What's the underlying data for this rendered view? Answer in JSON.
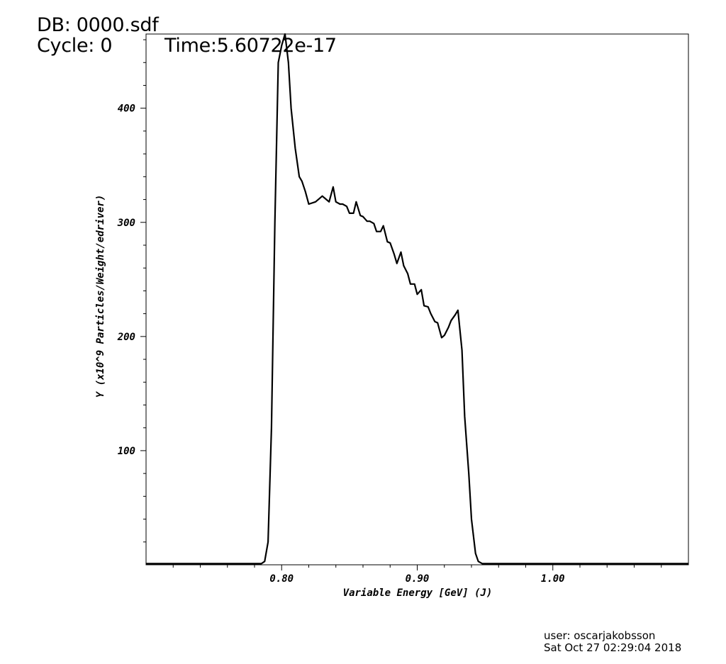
{
  "header": {
    "db": "DB: 0000.sdf",
    "cycle": "Cycle: 0",
    "time": "Time:5.60722e-17"
  },
  "footer": {
    "user": "user: oscarjakobsson",
    "date": "Sat Oct 27 02:29:04 2018"
  },
  "chart_data": {
    "type": "line",
    "title": "",
    "xlabel": "Variable Energy [GeV] (J)",
    "ylabel": "Y (x10^9 Particles/Weight/edriver)",
    "xlim": [
      0.7,
      1.1
    ],
    "ylim": [
      0,
      465
    ],
    "x_ticks": [
      {
        "value": 0.8,
        "label": "0.80"
      },
      {
        "value": 0.9,
        "label": "0.90"
      },
      {
        "value": 1.0,
        "label": "1.00"
      }
    ],
    "y_ticks": [
      {
        "value": 100,
        "label": "100"
      },
      {
        "value": 200,
        "label": "200"
      },
      {
        "value": 300,
        "label": "300"
      },
      {
        "value": 400,
        "label": "400"
      }
    ],
    "grid": false,
    "line_color": "#000000",
    "x": [
      0.7,
      0.785,
      0.7875,
      0.79,
      0.7925,
      0.795,
      0.7975,
      0.8,
      0.8025,
      0.805,
      0.807,
      0.81,
      0.813,
      0.815,
      0.8175,
      0.82,
      0.825,
      0.83,
      0.833,
      0.835,
      0.838,
      0.84,
      0.843,
      0.845,
      0.848,
      0.85,
      0.853,
      0.855,
      0.858,
      0.86,
      0.863,
      0.865,
      0.868,
      0.87,
      0.873,
      0.875,
      0.878,
      0.88,
      0.883,
      0.885,
      0.888,
      0.89,
      0.893,
      0.895,
      0.898,
      0.9,
      0.903,
      0.905,
      0.908,
      0.91,
      0.913,
      0.915,
      0.918,
      0.92,
      0.923,
      0.925,
      0.928,
      0.93,
      0.933,
      0.935,
      0.938,
      0.94,
      0.943,
      0.945,
      0.948,
      0.95,
      0.953,
      0.955,
      0.958,
      0.96,
      0.963,
      0.965,
      0.968,
      0.97,
      0.973,
      0.975,
      0.978,
      0.98,
      0.983,
      0.985,
      0.988,
      0.99,
      0.993,
      0.995,
      0.998,
      1.0,
      1.003,
      1.005,
      1.008,
      1.01,
      1.013,
      1.015,
      1.018,
      1.02,
      1.1
    ],
    "y": [
      1,
      1,
      3,
      20,
      120,
      300,
      440,
      455,
      465,
      440,
      400,
      365,
      340,
      336,
      327,
      316,
      318,
      323,
      320,
      318,
      331,
      318,
      316,
      316,
      314,
      308,
      308,
      318,
      306,
      305,
      301,
      301,
      299,
      292,
      292,
      297,
      283,
      282,
      272,
      264,
      274,
      262,
      255,
      246,
      246,
      237,
      241,
      227,
      226,
      220,
      213,
      212,
      199,
      201,
      208,
      214,
      219,
      223,
      188,
      130,
      80,
      40,
      10,
      3,
      1,
      1,
      1,
      1,
      1,
      1,
      1,
      1,
      1,
      1,
      1,
      1,
      1,
      1,
      1,
      1,
      1,
      1,
      1,
      1,
      1,
      1,
      1,
      1,
      1,
      1,
      1,
      1,
      1,
      1,
      1
    ]
  }
}
